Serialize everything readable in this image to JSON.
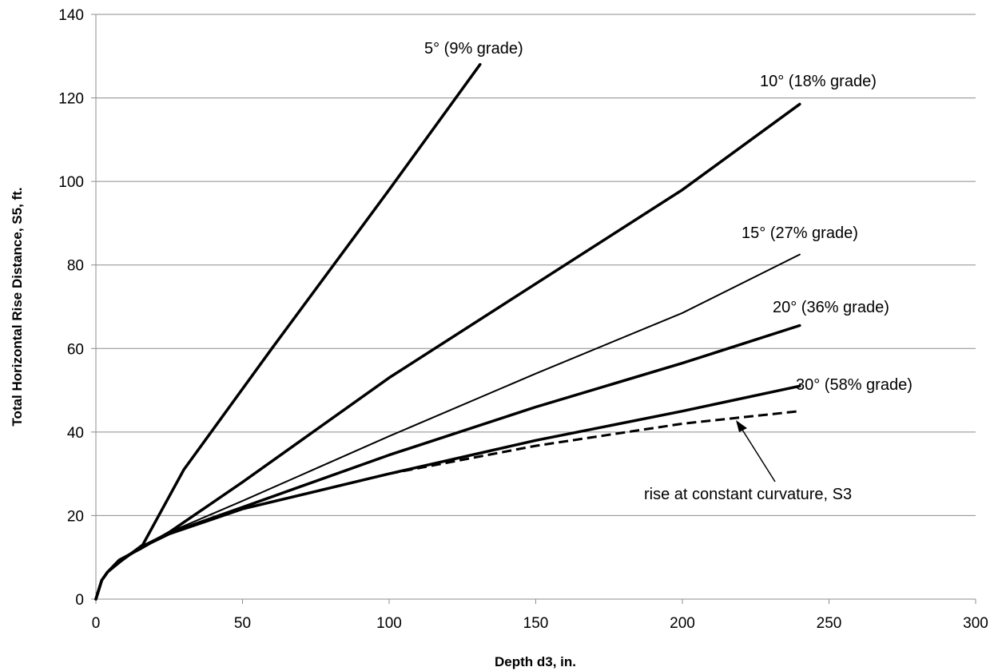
{
  "chart_data": {
    "type": "line",
    "xlabel": "Depth d3, in.",
    "ylabel": "Total Horizontal Rise Distance, S5, ft.",
    "xlim": [
      0,
      300
    ],
    "ylim": [
      0,
      140
    ],
    "x_ticks": [
      0,
      50,
      100,
      150,
      200,
      250,
      300
    ],
    "y_ticks": [
      0,
      20,
      40,
      60,
      80,
      100,
      120,
      140
    ],
    "grid": "horizontal",
    "series": [
      {
        "label_prefix": "5°",
        "label_suffix": " (9% grade)",
        "stroke": "#000000",
        "style": "thick",
        "points": [
          [
            0,
            0
          ],
          [
            2,
            4.5
          ],
          [
            4,
            6.5
          ],
          [
            8,
            8.8
          ],
          [
            16,
            13
          ],
          [
            30,
            31
          ],
          [
            60,
            60
          ],
          [
            90,
            88.5
          ],
          [
            100,
            98
          ],
          [
            131,
            128
          ]
        ]
      },
      {
        "label_prefix": "10°",
        "label_suffix": " (18% grade)",
        "stroke": "#000000",
        "style": "thick",
        "points": [
          [
            0,
            0
          ],
          [
            2,
            4.5
          ],
          [
            4,
            6.5
          ],
          [
            8,
            9.4
          ],
          [
            15,
            12
          ],
          [
            25,
            16
          ],
          [
            50,
            28
          ],
          [
            100,
            53
          ],
          [
            150,
            75.5
          ],
          [
            200,
            98
          ],
          [
            240,
            118.5
          ]
        ]
      },
      {
        "label_prefix": "15°",
        "label_suffix": " (27% grade)",
        "stroke": "#000000",
        "style": "thin",
        "points": [
          [
            0,
            0
          ],
          [
            2,
            4.5
          ],
          [
            4,
            6.5
          ],
          [
            8,
            9.2
          ],
          [
            15,
            12.5
          ],
          [
            25,
            16
          ],
          [
            50,
            23.5
          ],
          [
            100,
            39
          ],
          [
            150,
            54
          ],
          [
            200,
            68.5
          ],
          [
            240,
            82.5
          ]
        ]
      },
      {
        "label_prefix": "20°",
        "label_suffix": " (36% grade)",
        "stroke": "#000000",
        "style": "thick",
        "points": [
          [
            0,
            0
          ],
          [
            2,
            4.5
          ],
          [
            4,
            6.5
          ],
          [
            8,
            9.1
          ],
          [
            15,
            12.3
          ],
          [
            25,
            15.8
          ],
          [
            50,
            22
          ],
          [
            100,
            34.5
          ],
          [
            150,
            46
          ],
          [
            200,
            56.5
          ],
          [
            240,
            65.5
          ]
        ]
      },
      {
        "label_prefix": "30°",
        "label_suffix": " (58% grade)",
        "stroke": "#000000",
        "style": "thick",
        "points": [
          [
            0,
            0
          ],
          [
            2,
            4.5
          ],
          [
            4,
            6.5
          ],
          [
            8,
            9
          ],
          [
            15,
            12.2
          ],
          [
            25,
            15.6
          ],
          [
            50,
            21.6
          ],
          [
            100,
            30
          ],
          [
            150,
            38
          ],
          [
            200,
            45
          ],
          [
            240,
            51
          ]
        ]
      },
      {
        "label_prefix": "rise at constant curvature,",
        "label_suffix": " S3",
        "stroke": "#000000",
        "style": "dashed",
        "points": [
          [
            0,
            0
          ],
          [
            2,
            4.5
          ],
          [
            4,
            6.5
          ],
          [
            8,
            9
          ],
          [
            15,
            12.2
          ],
          [
            25,
            15.6
          ],
          [
            50,
            21.6
          ],
          [
            100,
            30
          ],
          [
            150,
            36.7
          ],
          [
            200,
            42
          ],
          [
            240,
            45
          ]
        ]
      }
    ]
  }
}
